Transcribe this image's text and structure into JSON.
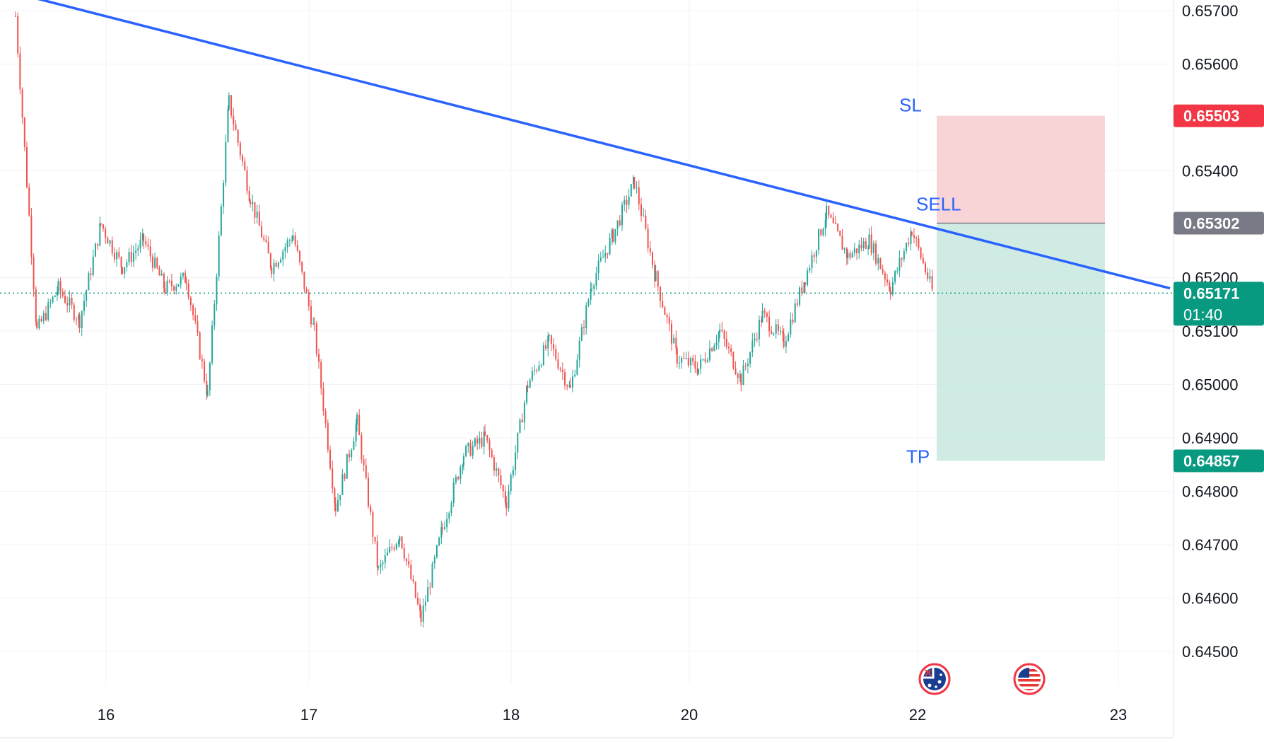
{
  "colors": {
    "up": "#26a69a",
    "down": "#ef5350",
    "trendline": "#2962ff",
    "stop_zone": "#f7c5c8",
    "target_zone": "#c3e6dd",
    "sl_tag": "#f23645",
    "entry_tag": "#787b86",
    "current_tag": "#089981",
    "tp_tag": "#089981",
    "grid": "#f0f3fa",
    "annotation": "#2962ff"
  },
  "axis": {
    "price_ticks": [
      "0.65700",
      "0.65600",
      "0.65400",
      "0.65200",
      "0.65100",
      "0.65000",
      "0.64900",
      "0.64800",
      "0.64700",
      "0.64600",
      "0.64500"
    ],
    "date_ticks": [
      "16",
      "17",
      "18",
      "20",
      "22",
      "23"
    ]
  },
  "annotations": {
    "sl": "SL",
    "sell": "SELL",
    "tp": "TP"
  },
  "price_tags": {
    "stop_loss": "0.65503",
    "entry": "0.65302",
    "current_price": "0.65171",
    "countdown": "01:40",
    "take_profit": "0.64857"
  },
  "events": [
    {
      "name": "australia-flag-icon",
      "country": "AU"
    },
    {
      "name": "usa-flag-icon",
      "country": "US"
    }
  ],
  "chart_data": {
    "type": "candlestick",
    "symbol_hint": "",
    "ylim": [
      0.6442,
      0.6572
    ],
    "x_ticks": [
      "16",
      "17",
      "18",
      "20",
      "22",
      "23"
    ],
    "trendline": {
      "from": [
        "15",
        0.6573
      ],
      "to": [
        "22+",
        0.6518
      ]
    },
    "position": {
      "side": "SELL",
      "entry": 0.65302,
      "stop_loss": 0.65503,
      "take_profit": 0.64857
    },
    "current_price": 0.65171,
    "price_path": [
      [
        0.6569,
        "15"
      ],
      [
        0.651,
        "15"
      ],
      [
        0.6518,
        "15"
      ],
      [
        0.6512,
        "15"
      ],
      [
        0.653,
        "16"
      ],
      [
        0.6522,
        "16"
      ],
      [
        0.6527,
        "16"
      ],
      [
        0.6518,
        "16"
      ],
      [
        0.652,
        "16"
      ],
      [
        0.6498,
        "16"
      ],
      [
        0.6553,
        "16"
      ],
      [
        0.6535,
        "16"
      ],
      [
        0.6522,
        "16"
      ],
      [
        0.6528,
        "16"
      ],
      [
        0.651,
        "17"
      ],
      [
        0.6477,
        "17"
      ],
      [
        0.6493,
        "17"
      ],
      [
        0.6465,
        "17"
      ],
      [
        0.6472,
        "17"
      ],
      [
        0.6456,
        "17"
      ],
      [
        0.6473,
        "17"
      ],
      [
        0.6487,
        "17"
      ],
      [
        0.649,
        "18"
      ],
      [
        0.6478,
        "18"
      ],
      [
        0.65,
        "18"
      ],
      [
        0.6508,
        "18"
      ],
      [
        0.6499,
        "18"
      ],
      [
        0.6519,
        "18"
      ],
      [
        0.6528,
        "18"
      ],
      [
        0.6538,
        "18"
      ],
      [
        0.652,
        "18"
      ],
      [
        0.6505,
        "20"
      ],
      [
        0.6503,
        "20"
      ],
      [
        0.651,
        "20"
      ],
      [
        0.6501,
        "20"
      ],
      [
        0.6513,
        "20"
      ],
      [
        0.6508,
        "20"
      ],
      [
        0.652,
        "20"
      ],
      [
        0.6532,
        "20"
      ],
      [
        0.6524,
        "22"
      ],
      [
        0.6527,
        "22"
      ],
      [
        0.6518,
        "22"
      ],
      [
        0.6529,
        "22"
      ],
      [
        0.6517,
        "22"
      ]
    ]
  }
}
